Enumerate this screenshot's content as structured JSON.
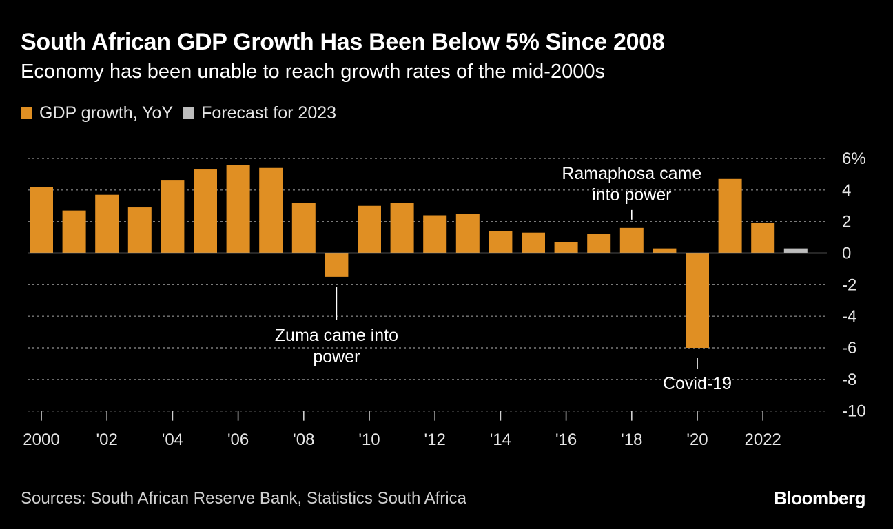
{
  "header": {
    "title": "South African GDP Growth Has Been Below 5% Since 2008",
    "subtitle": "Economy has been unable to reach growth rates of the mid-2000s"
  },
  "legend": [
    {
      "label": "GDP growth, YoY",
      "color": "#e08f23"
    },
    {
      "label": "Forecast for 2023",
      "color": "#bdbdbd"
    }
  ],
  "footer": {
    "source": "Sources: South African Reserve Bank, Statistics South Africa",
    "brand": "Bloomberg"
  },
  "chart_data": {
    "type": "bar",
    "categories": [
      "2000",
      "2001",
      "2002",
      "2003",
      "2004",
      "2005",
      "2006",
      "2007",
      "2008",
      "2009",
      "2010",
      "2011",
      "2012",
      "2013",
      "2014",
      "2015",
      "2016",
      "2017",
      "2018",
      "2019",
      "2020",
      "2021",
      "2022",
      "2023"
    ],
    "series": [
      {
        "name": "GDP growth, YoY",
        "color": "#e08f23",
        "values": [
          4.2,
          2.7,
          3.7,
          2.9,
          4.6,
          5.3,
          5.6,
          5.4,
          3.2,
          -1.5,
          3.0,
          3.2,
          2.4,
          2.5,
          1.4,
          1.3,
          0.7,
          1.2,
          1.6,
          0.3,
          -6.0,
          4.7,
          1.9,
          null
        ]
      },
      {
        "name": "Forecast for 2023",
        "color": "#bdbdbd",
        "values": [
          null,
          null,
          null,
          null,
          null,
          null,
          null,
          null,
          null,
          null,
          null,
          null,
          null,
          null,
          null,
          null,
          null,
          null,
          null,
          null,
          null,
          null,
          null,
          0.3
        ]
      }
    ],
    "x_tick_labels": [
      "2000",
      "'02",
      "'04",
      "'06",
      "'08",
      "'10",
      "'12",
      "'14",
      "'16",
      "'18",
      "'20",
      "2022"
    ],
    "y_ticks": [
      "6%",
      "4",
      "2",
      "0",
      "-2",
      "-4",
      "-6",
      "-8",
      "-10"
    ],
    "ylim": [
      -10,
      6
    ],
    "grid": true,
    "y_axis_position": "right",
    "annotations": [
      {
        "text": [
          "Zuma came into",
          "power"
        ],
        "x": "2009",
        "position": "below"
      },
      {
        "text": [
          "Ramaphosa came",
          "into power"
        ],
        "x": "2018",
        "position": "above"
      },
      {
        "text": [
          "Covid-19"
        ],
        "x": "2020",
        "position": "below"
      }
    ]
  }
}
